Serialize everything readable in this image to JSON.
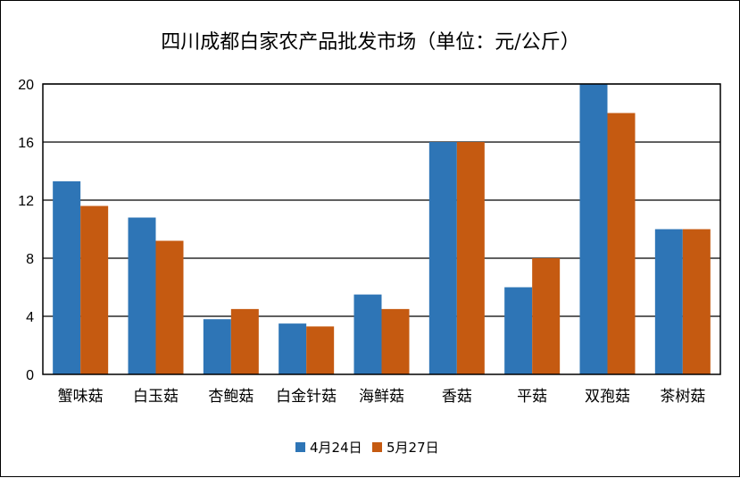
{
  "chart_data": {
    "type": "bar",
    "title": "四川成都白家农产品批发市场（单位：元/公斤）",
    "xlabel": "",
    "ylabel": "",
    "ylim": [
      0,
      20
    ],
    "yticks": [
      0,
      4,
      8,
      12,
      16,
      20
    ],
    "grid": true,
    "legend_position": "bottom",
    "categories": [
      "蟹味菇",
      "白玉菇",
      "杏鲍菇",
      "白金针菇",
      "海鲜菇",
      "香菇",
      "平菇",
      "双孢菇",
      "茶树菇"
    ],
    "series": [
      {
        "name": "4月24日",
        "color": "#2E75B6",
        "values": [
          13.3,
          10.8,
          3.8,
          3.5,
          5.5,
          16,
          6,
          20,
          10
        ]
      },
      {
        "name": "5月27日",
        "color": "#C55A11",
        "values": [
          11.6,
          9.2,
          4.5,
          3.3,
          4.5,
          16,
          8,
          18,
          10
        ]
      }
    ]
  }
}
